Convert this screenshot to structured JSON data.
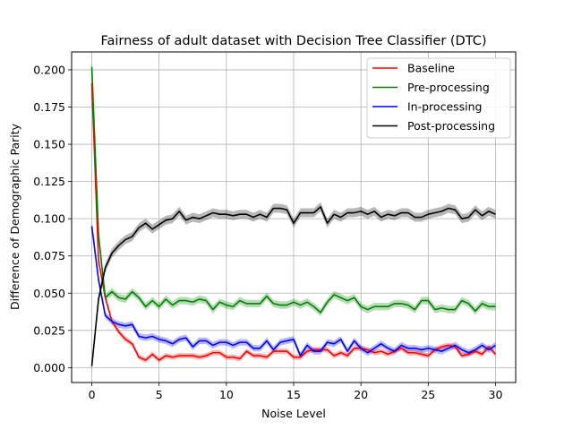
{
  "chart_data": {
    "type": "line",
    "title": "Fairness of adult dataset with Decision Tree Classifier (DTC)",
    "xlabel": "Noise Level",
    "ylabel": "Difference of Demographic Parity",
    "xlim": [
      -1.5,
      31.5
    ],
    "ylim": [
      -0.01,
      0.212
    ],
    "xticks": [
      0,
      5,
      10,
      15,
      20,
      25,
      30
    ],
    "yticks": [
      0.0,
      0.025,
      0.05,
      0.075,
      0.1,
      0.125,
      0.15,
      0.175,
      0.2
    ],
    "ytick_labels": [
      "0.000",
      "0.025",
      "0.050",
      "0.075",
      "0.100",
      "0.125",
      "0.150",
      "0.175",
      "0.200"
    ],
    "grid": true,
    "legend_position": "upper right",
    "x": [
      0,
      0.5,
      1,
      1.5,
      2,
      2.5,
      3,
      3.5,
      4,
      4.5,
      5,
      5.5,
      6,
      6.5,
      7,
      7.5,
      8,
      8.5,
      9,
      9.5,
      10,
      10.5,
      11,
      11.5,
      12,
      12.5,
      13,
      13.5,
      14,
      14.5,
      15,
      15.5,
      16,
      16.5,
      17,
      17.5,
      18,
      18.5,
      19,
      19.5,
      20,
      20.5,
      21,
      21.5,
      22,
      22.5,
      23,
      23.5,
      24,
      24.5,
      25,
      25.5,
      26,
      26.5,
      27,
      27.5,
      28,
      28.5,
      29,
      29.5,
      30
    ],
    "series": [
      {
        "name": "Baseline",
        "color": "#ff0000",
        "values": [
          0.191,
          0.072,
          0.047,
          0.031,
          0.024,
          0.019,
          0.016,
          0.007,
          0.005,
          0.009,
          0.005,
          0.008,
          0.007,
          0.008,
          0.008,
          0.008,
          0.007,
          0.008,
          0.01,
          0.01,
          0.007,
          0.007,
          0.006,
          0.011,
          0.008,
          0.008,
          0.007,
          0.011,
          0.011,
          0.011,
          0.007,
          0.007,
          0.011,
          0.012,
          0.012,
          0.012,
          0.008,
          0.01,
          0.008,
          0.013,
          0.013,
          0.012,
          0.01,
          0.011,
          0.009,
          0.011,
          0.013,
          0.01,
          0.01,
          0.009,
          0.008,
          0.012,
          0.014,
          0.015,
          0.014,
          0.008,
          0.009,
          0.011,
          0.009,
          0.014,
          0.009
        ],
        "band": 0.0018
      },
      {
        "name": "Pre-processing",
        "color": "#008000",
        "values": [
          0.202,
          0.089,
          0.047,
          0.051,
          0.047,
          0.046,
          0.051,
          0.047,
          0.041,
          0.045,
          0.041,
          0.046,
          0.042,
          0.045,
          0.045,
          0.044,
          0.046,
          0.045,
          0.039,
          0.044,
          0.042,
          0.041,
          0.045,
          0.043,
          0.043,
          0.043,
          0.048,
          0.043,
          0.042,
          0.042,
          0.044,
          0.042,
          0.044,
          0.041,
          0.037,
          0.044,
          0.049,
          0.047,
          0.045,
          0.047,
          0.041,
          0.039,
          0.041,
          0.041,
          0.041,
          0.043,
          0.043,
          0.042,
          0.039,
          0.045,
          0.045,
          0.039,
          0.04,
          0.039,
          0.039,
          0.045,
          0.043,
          0.038,
          0.043,
          0.041,
          0.041
        ],
        "band": 0.0025
      },
      {
        "name": "In-processing",
        "color": "#0000ff",
        "values": [
          0.095,
          0.059,
          0.035,
          0.031,
          0.029,
          0.028,
          0.029,
          0.021,
          0.02,
          0.021,
          0.019,
          0.018,
          0.016,
          0.019,
          0.02,
          0.014,
          0.018,
          0.018,
          0.015,
          0.017,
          0.017,
          0.015,
          0.017,
          0.017,
          0.013,
          0.013,
          0.018,
          0.012,
          0.017,
          0.018,
          0.019,
          0.008,
          0.015,
          0.011,
          0.011,
          0.017,
          0.016,
          0.019,
          0.011,
          0.018,
          0.013,
          0.01,
          0.013,
          0.016,
          0.013,
          0.011,
          0.015,
          0.013,
          0.013,
          0.012,
          0.013,
          0.012,
          0.011,
          0.013,
          0.015,
          0.012,
          0.01,
          0.012,
          0.015,
          0.012,
          0.015
        ],
        "band": 0.0022
      },
      {
        "name": "Post-processing",
        "color": "#000000",
        "values": [
          0.001,
          0.046,
          0.067,
          0.077,
          0.082,
          0.086,
          0.088,
          0.094,
          0.097,
          0.093,
          0.096,
          0.099,
          0.1,
          0.105,
          0.099,
          0.101,
          0.1,
          0.102,
          0.104,
          0.103,
          0.103,
          0.102,
          0.103,
          0.103,
          0.101,
          0.103,
          0.101,
          0.107,
          0.107,
          0.106,
          0.097,
          0.104,
          0.104,
          0.104,
          0.108,
          0.097,
          0.103,
          0.101,
          0.104,
          0.104,
          0.105,
          0.103,
          0.105,
          0.101,
          0.103,
          0.102,
          0.104,
          0.104,
          0.101,
          0.101,
          0.103,
          0.104,
          0.105,
          0.107,
          0.106,
          0.1,
          0.101,
          0.106,
          0.102,
          0.105,
          0.103
        ],
        "band": 0.003
      }
    ]
  }
}
